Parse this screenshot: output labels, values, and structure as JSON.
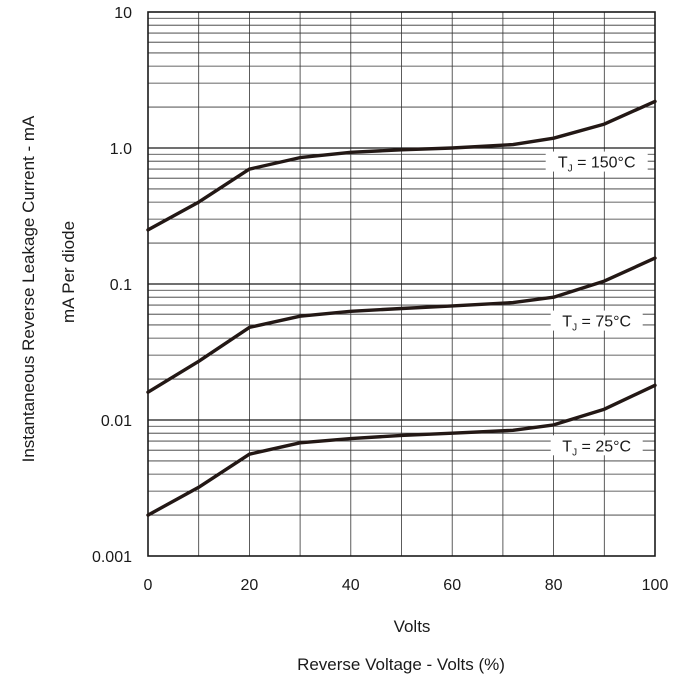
{
  "chart_data": {
    "type": "line",
    "title": "",
    "xlabel": "Volts",
    "xlabel_secondary": "Reverse Voltage - Volts (%)",
    "ylabel": "Instantaneous Reverse Leakage Current - mA",
    "ylabel_secondary": "mA   Per diode",
    "y_scale": "log",
    "grid": true,
    "xlim": [
      0,
      100
    ],
    "ylim": [
      0.001,
      10
    ],
    "x_ticks": [
      "0",
      "20",
      "40",
      "60",
      "80",
      "100"
    ],
    "y_ticks": [
      "0.001",
      "0.01",
      "0.1",
      "1.0",
      "10"
    ],
    "line_color": "#231815",
    "series": [
      {
        "name": "TJ = 150°C",
        "label_main": "T",
        "label_sub": "J",
        "label_rest": " = 150°C",
        "x": [
          0,
          10,
          20,
          30,
          40,
          50,
          60,
          72,
          80,
          90,
          100
        ],
        "y": [
          0.25,
          0.4,
          0.7,
          0.85,
          0.93,
          0.97,
          1.0,
          1.06,
          1.18,
          1.5,
          2.2
        ]
      },
      {
        "name": "TJ = 75°C",
        "label_main": "T",
        "label_sub": "J",
        "label_rest": " = 75°C",
        "x": [
          0,
          10,
          20,
          30,
          40,
          50,
          60,
          72,
          80,
          90,
          100
        ],
        "y": [
          0.016,
          0.027,
          0.048,
          0.058,
          0.063,
          0.066,
          0.069,
          0.073,
          0.08,
          0.105,
          0.155
        ]
      },
      {
        "name": "TJ = 25°C",
        "label_main": "T",
        "label_sub": "J",
        "label_rest": " = 25°C",
        "x": [
          0,
          10,
          20,
          30,
          40,
          50,
          60,
          72,
          80,
          90,
          100
        ],
        "y": [
          0.002,
          0.0032,
          0.0056,
          0.0068,
          0.0073,
          0.0077,
          0.008,
          0.0084,
          0.0092,
          0.012,
          0.018
        ]
      }
    ]
  }
}
